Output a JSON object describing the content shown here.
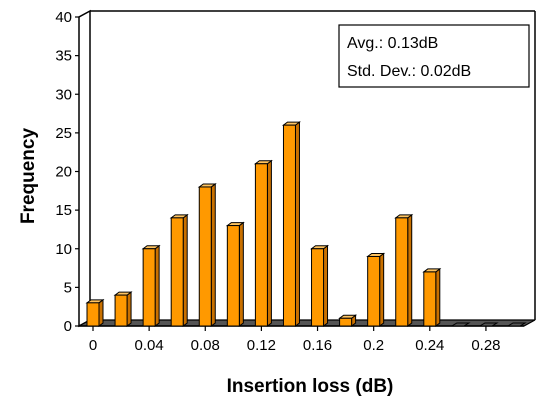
{
  "chart_data": {
    "type": "bar",
    "x": [
      0,
      0.02,
      0.04,
      0.06,
      0.08,
      0.1,
      0.12,
      0.14,
      0.16,
      0.18,
      0.2,
      0.22,
      0.24,
      0.26,
      0.28,
      0.3
    ],
    "values": [
      3,
      4,
      10,
      14,
      18,
      13,
      21,
      26,
      10,
      1,
      9,
      14,
      7,
      0,
      0,
      0
    ],
    "xlabel": "Insertion loss (dB)",
    "ylabel": "Frequency",
    "xticks": [
      "0",
      "0.04",
      "0.08",
      "0.12",
      "0.16",
      "0.2",
      "0.24",
      "0.28"
    ],
    "yticks": [
      "0",
      "5",
      "10",
      "15",
      "20",
      "25",
      "30",
      "35",
      "40"
    ],
    "ylim": [
      0,
      40
    ],
    "xlim": [
      0,
      0.3
    ],
    "grid": false,
    "annotations": [
      "Avg.: 0.13dB",
      "Std. Dev.: 0.02dB"
    ],
    "annotation_placement": "top-right",
    "colors": {
      "bar_front": "#ff9900",
      "bar_side": "#c87000",
      "bar_top": "#ffc460",
      "bar_outline": "#000000",
      "floor_shadow": "#555555",
      "axis": "#000000"
    }
  }
}
